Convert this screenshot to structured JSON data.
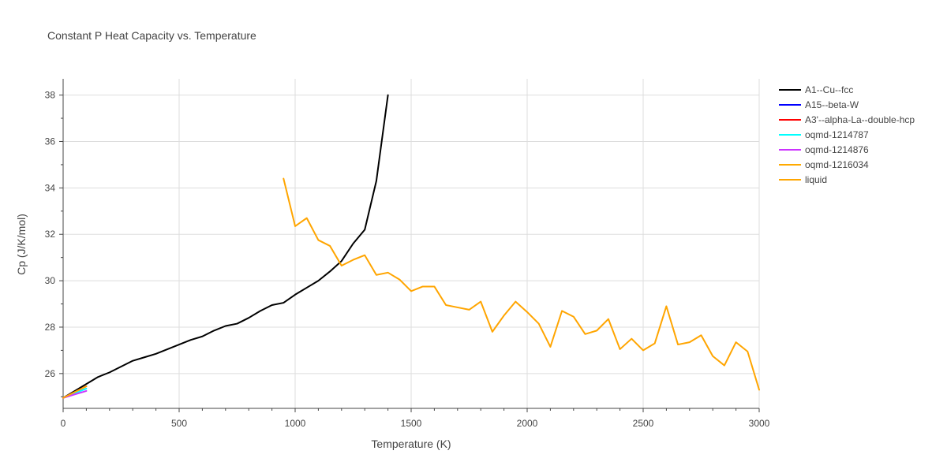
{
  "chart_data": {
    "type": "line",
    "title": "Constant P Heat Capacity vs. Temperature",
    "xlabel": "Temperature (K)",
    "ylabel": "Cp (J/K/mol)",
    "xlim": [
      0,
      3000
    ],
    "ylim": [
      24.5,
      38.7
    ],
    "xticks": [
      0,
      500,
      1000,
      1500,
      2000,
      2500,
      3000
    ],
    "xtick_labels": [
      "0",
      "500",
      "1000",
      "1500",
      "2000",
      "2500",
      "3000"
    ],
    "yticks": [
      26,
      28,
      30,
      32,
      34,
      36,
      38
    ],
    "ytick_labels": [
      "26",
      "28",
      "30",
      "32",
      "34",
      "36",
      "38"
    ],
    "grid": true,
    "legend_position": "top-right",
    "series": [
      {
        "name": "A1--Cu--fcc",
        "color": "#000000",
        "x": [
          0,
          50,
          100,
          150,
          200,
          250,
          300,
          350,
          400,
          450,
          500,
          550,
          600,
          650,
          700,
          750,
          800,
          850,
          900,
          950,
          1000,
          1050,
          1100,
          1150,
          1200,
          1250,
          1300,
          1350,
          1400
        ],
        "y": [
          24.95,
          25.25,
          25.55,
          25.85,
          26.05,
          26.3,
          26.55,
          26.7,
          26.85,
          27.05,
          27.25,
          27.45,
          27.6,
          27.85,
          28.05,
          28.15,
          28.4,
          28.7,
          28.95,
          29.05,
          29.4,
          29.7,
          30.0,
          30.4,
          30.85,
          31.6,
          32.2,
          34.3,
          38.0
        ]
      },
      {
        "name": "A15--beta-W",
        "color": "#0000ff",
        "x": [
          0,
          50,
          100
        ],
        "y": [
          24.95,
          25.2,
          25.45
        ]
      },
      {
        "name": "A3'--alpha-La--double-hcp",
        "color": "#ff0000",
        "x": [
          0,
          50,
          100
        ],
        "y": [
          24.95,
          25.2,
          25.45
        ]
      },
      {
        "name": "oqmd-1214787",
        "color": "#00ffff",
        "x": [
          0,
          50,
          100
        ],
        "y": [
          24.95,
          25.15,
          25.35
        ]
      },
      {
        "name": "oqmd-1214876",
        "color": "#cc33ff",
        "x": [
          0,
          50,
          100
        ],
        "y": [
          24.95,
          25.1,
          25.25
        ]
      },
      {
        "name": "oqmd-1216034",
        "color": "#ffaa00",
        "x": [
          0,
          50,
          100
        ],
        "y": [
          24.95,
          25.2,
          25.45
        ]
      },
      {
        "name": "liquid",
        "color": "#ffa500",
        "x": [
          950,
          1000,
          1050,
          1100,
          1150,
          1200,
          1250,
          1300,
          1350,
          1400,
          1450,
          1500,
          1550,
          1600,
          1650,
          1700,
          1750,
          1800,
          1850,
          1900,
          1950,
          2000,
          2050,
          2100,
          2150,
          2200,
          2250,
          2300,
          2350,
          2400,
          2450,
          2500,
          2550,
          2600,
          2650,
          2700,
          2750,
          2800,
          2850,
          2900,
          2950,
          3000
        ],
        "y": [
          34.4,
          32.35,
          32.7,
          31.75,
          31.5,
          30.65,
          30.9,
          31.1,
          30.25,
          30.35,
          30.05,
          29.55,
          29.75,
          29.75,
          28.95,
          28.85,
          28.75,
          29.1,
          27.8,
          28.5,
          29.1,
          28.65,
          28.15,
          27.15,
          28.7,
          28.45,
          27.7,
          27.85,
          28.35,
          27.05,
          27.5,
          27.0,
          27.3,
          28.9,
          27.25,
          27.35,
          27.65,
          26.75,
          26.35,
          27.35,
          26.95,
          25.3
        ]
      }
    ]
  }
}
